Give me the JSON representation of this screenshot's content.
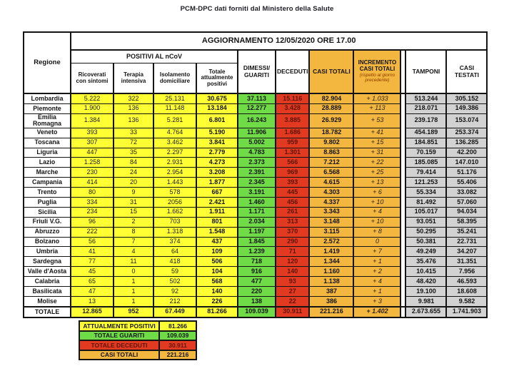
{
  "title": "PCM-DPC dati forniti dal Ministero della Salute",
  "colors": {
    "positivi_yellow": "#FFFF33",
    "guariti_green": "#6FDB46",
    "deceduti_red": "#E13A21",
    "casi_orange": "#F3B63F",
    "tamponi_gray": "#D2D2D2",
    "border_black": "#141414"
  },
  "chart_data": {
    "type": "table",
    "title": "PCM-DPC dati forniti dal Ministero della Salute",
    "update_banner": "AGGIORNAMENTO 12/05/2020 ORE 17.00",
    "headers": {
      "regione": "Regione",
      "positivi_group": "POSITIVI AL nCoV",
      "ricoverati": "Ricoverati con sintomi",
      "terapia": "Terapia intensiva",
      "isolamento": "Isolamento domiciliare",
      "totale_positivi": "Totale attualmente positivi",
      "dimessi_guariti": "DIMESSI/ GUARITI",
      "deceduti": "DECEDUTI",
      "casi_totali": "CASI TOTALI",
      "incremento_line1": "INCREMENTO",
      "incremento_line2": "CASI  TOTALI",
      "incremento_note": "(rispetto al giorno precedente)",
      "tamponi": "TAMPONI",
      "casi_testati": "CASI TESTATI"
    },
    "rows": [
      {
        "region": "Lombardia",
        "values": [
          "5.222",
          "322",
          "25.131",
          "30.675",
          "37.113",
          "15.116",
          "82.904",
          "+ 1.033",
          "513.244",
          "305.152"
        ]
      },
      {
        "region": "Piemonte",
        "values": [
          "1.900",
          "136",
          "11.148",
          "13.184",
          "12.277",
          "3.428",
          "28.889",
          "+ 113",
          "218.071",
          "149.386"
        ]
      },
      {
        "region": "Emilia Romagna",
        "values": [
          "1.384",
          "136",
          "5.281",
          "6.801",
          "16.243",
          "3.885",
          "26.929",
          "+ 53",
          "239.178",
          "153.074"
        ]
      },
      {
        "region": "Veneto",
        "values": [
          "393",
          "33",
          "4.764",
          "5.190",
          "11.906",
          "1.686",
          "18.782",
          "+ 41",
          "454.189",
          "253.374"
        ]
      },
      {
        "region": "Toscana",
        "values": [
          "307",
          "72",
          "3.462",
          "3.841",
          "5.002",
          "959",
          "9.802",
          "+ 15",
          "184.851",
          "136.285"
        ]
      },
      {
        "region": "Liguria",
        "values": [
          "447",
          "35",
          "2.297",
          "2.779",
          "4.783",
          "1.301",
          "8.863",
          "+ 31",
          "70.159",
          "42.200"
        ]
      },
      {
        "region": "Lazio",
        "values": [
          "1.258",
          "84",
          "2.931",
          "4.273",
          "2.373",
          "566",
          "7.212",
          "+ 22",
          "185.085",
          "147.010"
        ]
      },
      {
        "region": "Marche",
        "values": [
          "230",
          "24",
          "2.954",
          "3.208",
          "2.391",
          "969",
          "6.568",
          "+ 25",
          "79.414",
          "51.176"
        ]
      },
      {
        "region": "Campania",
        "values": [
          "414",
          "20",
          "1.443",
          "1.877",
          "2.345",
          "393",
          "4.615",
          "+ 13",
          "121.253",
          "55.406"
        ]
      },
      {
        "region": "Trento",
        "values": [
          "80",
          "9",
          "578",
          "667",
          "3.191",
          "445",
          "4.303",
          "+ 6",
          "55.334",
          "33.082"
        ]
      },
      {
        "region": "Puglia",
        "values": [
          "334",
          "31",
          "2056",
          "2.421",
          "1.460",
          "456",
          "4.337",
          "+ 10",
          "81.492",
          "57.060"
        ]
      },
      {
        "region": "Sicilia",
        "values": [
          "234",
          "15",
          "1.662",
          "1.911",
          "1.171",
          "261",
          "3.343",
          "+ 4",
          "105.017",
          "94.034"
        ]
      },
      {
        "region": "Friuli V.G.",
        "values": [
          "96",
          "2",
          "703",
          "801",
          "2.034",
          "313",
          "3.148",
          "+ 10",
          "93.051",
          "58.395"
        ]
      },
      {
        "region": "Abruzzo",
        "values": [
          "222",
          "8",
          "1.318",
          "1.548",
          "1.197",
          "370",
          "3.115",
          "+ 8",
          "50.295",
          "35.241"
        ]
      },
      {
        "region": "Bolzano",
        "values": [
          "56",
          "7",
          "374",
          "437",
          "1.845",
          "290",
          "2.572",
          "0",
          "50.381",
          "22.731"
        ]
      },
      {
        "region": "Umbria",
        "values": [
          "41",
          "4",
          "64",
          "109",
          "1.239",
          "71",
          "1.419",
          "+ 7",
          "49.249",
          "34.207"
        ]
      },
      {
        "region": "Sardegna",
        "values": [
          "77",
          "11",
          "418",
          "506",
          "718",
          "120",
          "1.344",
          "+ 1",
          "35.476",
          "31.351"
        ]
      },
      {
        "region": "Valle d'Aosta",
        "values": [
          "45",
          "0",
          "59",
          "104",
          "916",
          "140",
          "1.160",
          "+ 2",
          "10.415",
          "7.956"
        ]
      },
      {
        "region": "Calabria",
        "values": [
          "65",
          "1",
          "502",
          "568",
          "477",
          "93",
          "1.138",
          "+ 4",
          "48.420",
          "46.593"
        ]
      },
      {
        "region": "Basilicata",
        "values": [
          "47",
          "1",
          "92",
          "140",
          "220",
          "27",
          "387",
          "+ 1",
          "19.100",
          "18.608"
        ]
      },
      {
        "region": "Molise",
        "values": [
          "13",
          "1",
          "212",
          "226",
          "138",
          "22",
          "386",
          "+ 3",
          "9.981",
          "9.582"
        ]
      }
    ],
    "total_row": {
      "region": "TOTALE",
      "values": [
        "12.865",
        "952",
        "67.449",
        "81.266",
        "109.039",
        "30.911",
        "221.216",
        "+ 1.402",
        "2.673.655",
        "1.741.903"
      ]
    },
    "summary": [
      {
        "label": "ATTUALMENTE POSITIVI",
        "value": "81.266",
        "color": "yellow"
      },
      {
        "label": "TOTALE GUARITI",
        "value": "109.039",
        "color": "green"
      },
      {
        "label": "TOTALE DECEDUTI",
        "value": "30.911",
        "color": "red"
      },
      {
        "label": "CASI TOTALI",
        "value": "221.216",
        "color": "orange"
      }
    ]
  }
}
